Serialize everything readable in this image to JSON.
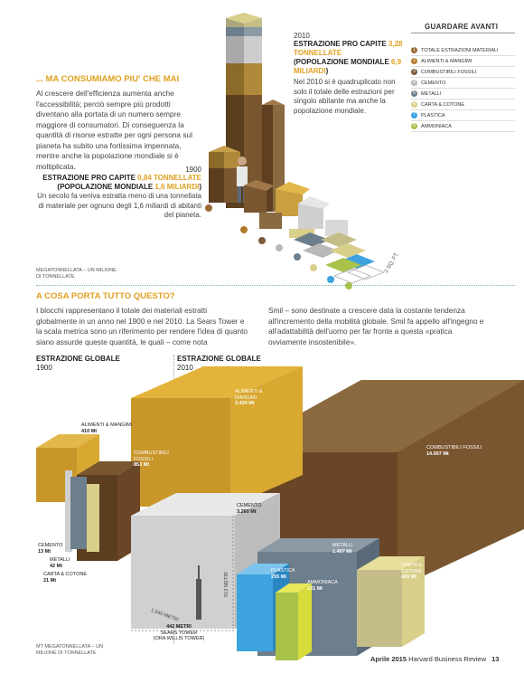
{
  "header": {
    "section_title": "GUARDARE AVANTI"
  },
  "legend": {
    "items": [
      {
        "num": "1",
        "label": "TOTALE ESTRAZIONI MATERIALI",
        "color": "#9a6a3a"
      },
      {
        "num": "2",
        "label": "ALIMENTI & MANGIMI",
        "color": "#b07a2a"
      },
      {
        "num": "3",
        "label": "COMBUSTIBILI FOSSILI",
        "color": "#7a5a3a"
      },
      {
        "num": "4",
        "label": "CEMENTO",
        "color": "#b9b9b9"
      },
      {
        "num": "5",
        "label": "METALLI",
        "color": "#6d7e8c"
      },
      {
        "num": "6",
        "label": "CARTA & COTONE",
        "color": "#d8cf8a"
      },
      {
        "num": "7",
        "label": "PLASTICA",
        "color": "#3ea3df"
      },
      {
        "num": "8",
        "label": "AMMONIACA",
        "color": "#a8c24a"
      }
    ]
  },
  "section1": {
    "heading": "... MA CONSUMIAMO PIU' CHE MAI",
    "body": "Al crescere dell'efficienza aumenta anche l'accessibilità; perciò sempre più prodotti diventano alla portata di un numero sempre maggiore di consumatori. Di conseguenza la quantità di risorse estratte per ogni persona sul pianeta ha subito una fortissima impennata, mentre anche la popolazione mondiale si è moltiplicata."
  },
  "y2010": {
    "year": "2010",
    "line1_pre": "ESTRAZIONE PRO CAPITE ",
    "line1_val": "3,28 TONNELLATE",
    "line2_pre": "(POPOLAZIONE MONDIALE ",
    "line2_val": "6,9 MILIARDI",
    "line2_post": ")",
    "desc": "Nel 2010 si è quadruplicato non solo il totale delle estrazioni per singolo abitante ma anche la popolazione mondiale."
  },
  "y1900": {
    "year": "1900",
    "line1_pre": "ESTRAZIONE PRO CAPITE ",
    "line1_val": "0,84 TONNELLATE",
    "line2_pre": "(POPOLAZIONE MONDIALE ",
    "line2_val": "1,6 MILIARDI",
    "line2_post": ")",
    "desc": "Un secolo fa veniva estratta meno di una tonnellata di materiale per ognuno degli 1,6 miliardi di abitanti del pianeta."
  },
  "scale_note_top": "MEGATONNELLATA – UN MILIONE DI TONNELLATE",
  "dim_label_top": "2 SQ. FT.",
  "section2": {
    "heading": "A COSA PORTA TUTTO QUESTO?",
    "col1": "I blocchi rappresentano il totale dei materiali estratti globalmente in un anno nel 1900 e nel 2010. La Sears Tower e la scala metrica sono un riferimento per rendere l'idea di quanto siano assurde queste quantità, le quali  – come nota",
    "col2": "Smil – sono destinate a crescere data la costante tendenza all'incremento della mobilità globale. Smil fa appello all'ingegno e all'adattabilità dell'uomo per far fronte a questa «pratica ovviamente insostenibile»."
  },
  "global1900": {
    "title": "ESTRAZIONE  GLOBALE",
    "year": "1900"
  },
  "global2010": {
    "title": "ESTRAZIONE  GLOBALE",
    "year": "2010"
  },
  "blocks1900": {
    "alimenti": {
      "name": "ALIMENTI & MANGIMI",
      "value": "410 Mt"
    },
    "combustibili": {
      "name": "COMBUSTIBILI FOSSILI",
      "value": "853 Mt"
    },
    "cemento": {
      "name": "CEMENTO",
      "value": "13 Mt"
    },
    "metalli": {
      "name": "METALLI",
      "value": "42 Mt"
    },
    "carta": {
      "name": "CARTA & COTONE",
      "value": "21 Mt"
    }
  },
  "blocks2010": {
    "alimenti": {
      "name": "ALIMENTI & MANGIMI",
      "value": "3.430 Mt"
    },
    "combustibili": {
      "name": "COMBUSTIBILI FOSSILI",
      "value": "14.067 Mt"
    },
    "cemento": {
      "name": "CEMENTO",
      "value": "3.260 Mt"
    },
    "metalli": {
      "name": "METALLI",
      "value": "1.497 Mt"
    },
    "plastica": {
      "name": "PLASTICA",
      "value": "255 Mt"
    },
    "ammoniaca": {
      "name": "AMMONIACA",
      "value": "131 Mt"
    },
    "carta": {
      "name": "CARTA & COTONE",
      "value": "420 Mt"
    }
  },
  "dims": {
    "width": "1.540 METRI",
    "height": "913 METRI"
  },
  "tower": {
    "line1": "442 METRI",
    "line2": "SEARS TOWER",
    "line3": "(ORA WILLIS TOWER)"
  },
  "scale_note_bottom": "MT MEGATONNELLATA – UN MILIONE DI TONNELLATE",
  "footer": {
    "month": "Aprile 2015",
    "magazine": "Harvard Business Review",
    "page": "13"
  }
}
